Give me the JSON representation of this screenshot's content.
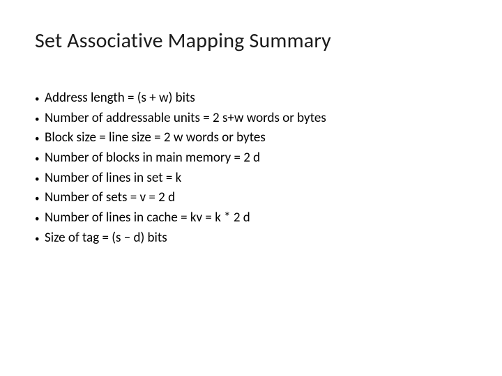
{
  "title": "Set Associative Mapping Summary",
  "bullets": [
    "Address length = (s + w) bits",
    "Number of addressable units = 2 s+w words or bytes",
    "Block size = line size = 2 w words or bytes",
    "Number of blocks in main memory = 2 d",
    "Number of lines in set = k",
    "Number of sets = v = 2 d",
    "Number of lines in cache = kv = k * 2 d",
    "Size of tag = (s – d) bits"
  ],
  "colors": {
    "background": "#ffffff",
    "text": "#000000",
    "title": "#1a1a1a"
  },
  "typography": {
    "title_fontsize_pt": 30,
    "body_fontsize_pt": 19,
    "font_family": "Calibri"
  }
}
